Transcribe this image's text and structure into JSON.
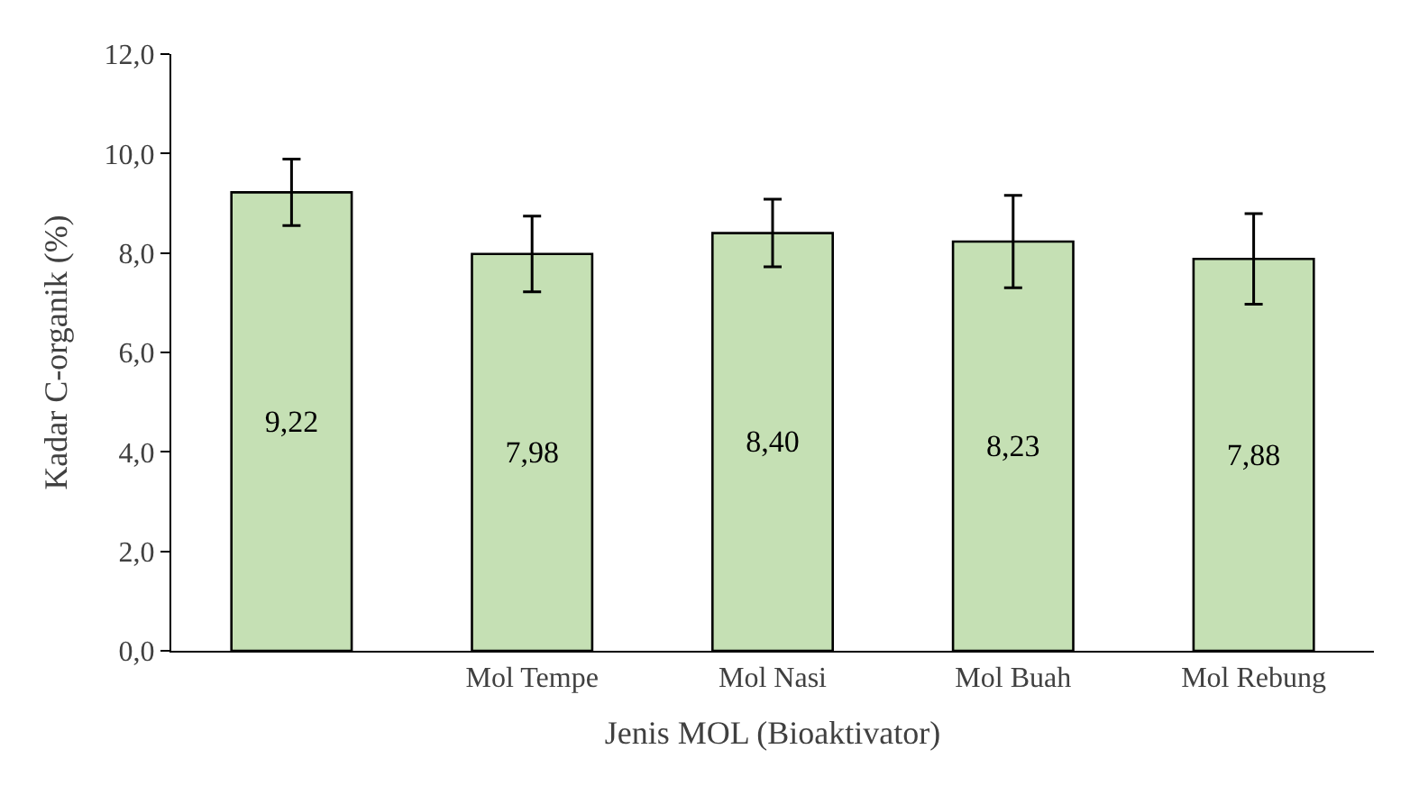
{
  "chart_data": {
    "type": "bar",
    "xlabel": "Jenis MOL (Bioaktivator)",
    "ylabel": "Kadar C-organik (%)",
    "categories": [
      null,
      "Mol Tempe",
      "Mol Nasi",
      "Mol Buah",
      "Mol Rebung"
    ],
    "values": [
      9.22,
      7.98,
      8.4,
      8.23,
      7.88
    ],
    "errors": [
      0.67,
      0.76,
      0.68,
      0.93,
      0.91
    ],
    "color": "#c5e0b4",
    "ylim": [
      0,
      12
    ],
    "yticks": [
      {
        "value": 0,
        "label": "0,0"
      },
      {
        "value": 2,
        "label": "2,0"
      },
      {
        "value": 4,
        "label": "4,0"
      },
      {
        "value": 6,
        "label": "6,0"
      },
      {
        "value": 8,
        "label": "8,0"
      },
      {
        "value": 10,
        "label": "10,0"
      },
      {
        "value": 12,
        "label": "12,0"
      }
    ],
    "value_labels": [
      "9,22",
      "7,98",
      "8,40",
      "8,23",
      "7,88"
    ],
    "legend": false
  }
}
